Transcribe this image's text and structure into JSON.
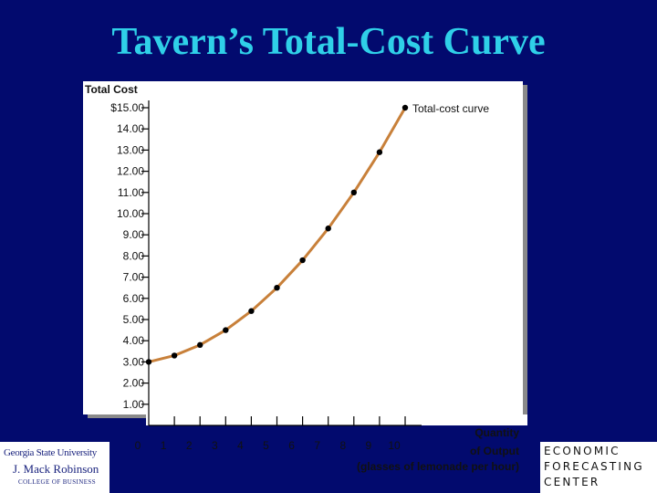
{
  "slide": {
    "title": "Tavern’s Total-Cost Curve"
  },
  "chart_data": {
    "type": "line",
    "title": "Tavern’s Total-Cost Curve",
    "ylabel": "Total Cost",
    "xlabel_lines": [
      "Quantity",
      "of Output",
      "(glasses of lemonade per hour)"
    ],
    "x": [
      0,
      1,
      2,
      3,
      4,
      5,
      6,
      7,
      8,
      9,
      10
    ],
    "y": [
      3.0,
      3.3,
      3.8,
      4.5,
      5.4,
      6.5,
      7.8,
      9.3,
      11.0,
      12.9,
      15.0
    ],
    "xlim": [
      0,
      10
    ],
    "ylim": [
      0,
      16
    ],
    "x_ticks": [
      "0",
      "1",
      "2",
      "3",
      "4",
      "5",
      "6",
      "7",
      "8",
      "9",
      "10"
    ],
    "y_ticks": [
      "1.00",
      "2.00",
      "3.00",
      "4.00",
      "5.00",
      "6.00",
      "7.00",
      "8.00",
      "9.00",
      "10.00",
      "11.00",
      "12.00",
      "13.00",
      "14.00",
      "$15.00"
    ],
    "series": [
      {
        "name": "Total-cost curve",
        "color": "#c8803a",
        "marker_color": "#000000"
      }
    ],
    "curve_label": "Total-cost curve",
    "grid": false,
    "colors": {
      "background": "#020a6e",
      "plot_panel": "#ffffff",
      "title": "#2fd0e8"
    }
  },
  "logos": {
    "left": {
      "line1": "Georgia State University",
      "line2": "J. Mack Robinson",
      "line3": "COLLEGE OF BUSINESS"
    },
    "right": {
      "line1": "ECONOMIC",
      "line2": "FORECASTING",
      "line3": "CENTER"
    }
  }
}
